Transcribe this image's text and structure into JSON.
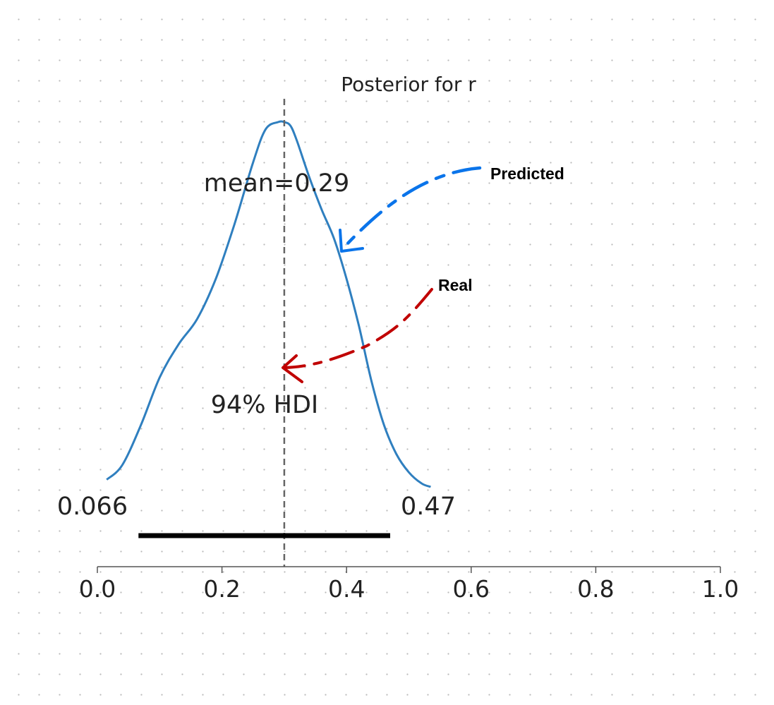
{
  "chart_data": {
    "type": "area",
    "title": "Posterior for r",
    "xlabel": "",
    "ylabel": "",
    "xlim": [
      0.0,
      1.0
    ],
    "x_ticks": [
      "0.0",
      "0.2",
      "0.4",
      "0.6",
      "0.8",
      "1.0"
    ],
    "x_tick_values": [
      0.0,
      0.2,
      0.4,
      0.6,
      0.8,
      1.0
    ],
    "grid": false,
    "density": {
      "x": [
        0.015,
        0.04,
        0.07,
        0.1,
        0.13,
        0.16,
        0.19,
        0.22,
        0.25,
        0.27,
        0.29,
        0.3,
        0.31,
        0.32,
        0.34,
        0.36,
        0.38,
        0.4,
        0.42,
        0.44,
        0.46,
        0.48,
        0.5,
        0.52,
        0.535
      ],
      "y": [
        0.02,
        0.06,
        0.17,
        0.3,
        0.39,
        0.46,
        0.57,
        0.72,
        0.89,
        0.98,
        1.0,
        1.0,
        0.99,
        0.95,
        0.85,
        0.76,
        0.68,
        0.57,
        0.44,
        0.29,
        0.17,
        0.09,
        0.04,
        0.01,
        0.0
      ]
    },
    "mean": 0.3,
    "mean_label": "mean=0.29",
    "hdi": {
      "low": 0.066,
      "high": 0.47,
      "label": "94% HDI",
      "low_label": "0.066",
      "high_label": "0.47"
    },
    "annotations": [
      {
        "label": "Predicted",
        "color": "#0a74ea"
      },
      {
        "label": "Real",
        "color": "#c00000"
      }
    ],
    "colors": {
      "density": "#2f7fbf",
      "mean_line": "#666666",
      "hdi_bar": "#000000",
      "axis": "#555555"
    }
  }
}
